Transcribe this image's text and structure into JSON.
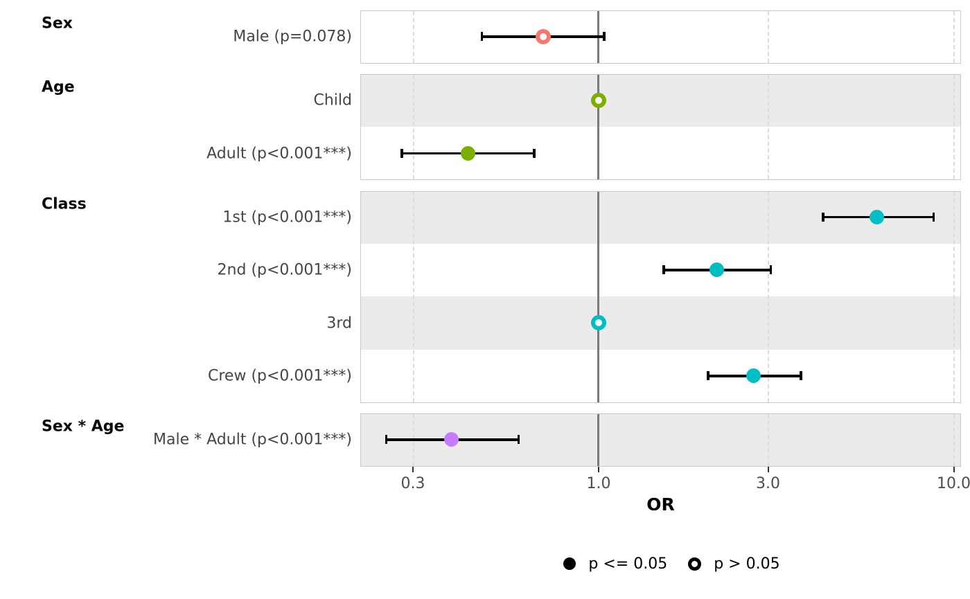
{
  "chart_data": {
    "type": "scatter",
    "subtype": "forest-plot-dot-whisker",
    "xlabel": "OR",
    "x_scale": "log10",
    "x_ticks": [
      0.3,
      1.0,
      3.0,
      10.0
    ],
    "x_tick_labels": [
      "0.3",
      "1.0",
      "3.0",
      "10.0"
    ],
    "x_range": [
      0.21,
      10.5
    ],
    "reference_line": 1.0,
    "dashed_gridlines": [
      0.3,
      3.0,
      10.0
    ],
    "grid": "dashed-vertical-only",
    "legend_position": "bottom",
    "legend": [
      {
        "shape": "filled-circle",
        "label": "p <= 0.05"
      },
      {
        "shape": "open-circle",
        "label": "p > 0.05"
      }
    ],
    "groups": [
      {
        "name": "Sex",
        "color": "#F8766D",
        "rows": [
          {
            "label": "Male (p=0.078)",
            "or": 0.7,
            "ci_low": 0.47,
            "ci_high": 1.04,
            "significant": false,
            "reference": false
          }
        ]
      },
      {
        "name": "Age",
        "color": "#7CAE00",
        "rows": [
          {
            "label": "Child",
            "or": 1.0,
            "significant": false,
            "reference": true
          },
          {
            "label": "Adult (p<0.001***)",
            "or": 0.43,
            "ci_low": 0.28,
            "ci_high": 0.66,
            "significant": true,
            "reference": false
          }
        ]
      },
      {
        "name": "Class",
        "color": "#00BFC4",
        "rows": [
          {
            "label": "1st (p<0.001***)",
            "or": 6.1,
            "ci_low": 4.3,
            "ci_high": 8.8,
            "significant": true,
            "reference": false
          },
          {
            "label": "2nd (p<0.001***)",
            "or": 2.16,
            "ci_low": 1.53,
            "ci_high": 3.06,
            "significant": true,
            "reference": false
          },
          {
            "label": "3rd",
            "or": 1.0,
            "significant": false,
            "reference": true
          },
          {
            "label": "Crew (p<0.001***)",
            "or": 2.74,
            "ci_low": 2.04,
            "ci_high": 3.72,
            "significant": true,
            "reference": false
          }
        ]
      },
      {
        "name": "Sex * Age",
        "color": "#C77CFF",
        "rows": [
          {
            "label": "Male * Adult (p<0.001***)",
            "or": 0.385,
            "ci_low": 0.253,
            "ci_high": 0.596,
            "significant": true,
            "reference": false
          }
        ]
      }
    ],
    "style_colors": {
      "stripe": "#ebebeb",
      "panel_border": "#c9c9c9",
      "dashed_grid": "#dcdcdc",
      "reference_line": "#7a7a7a",
      "errorbar": "#000000",
      "row_label_text": "#454545",
      "tick_label_text": "#4d4d4d"
    }
  }
}
